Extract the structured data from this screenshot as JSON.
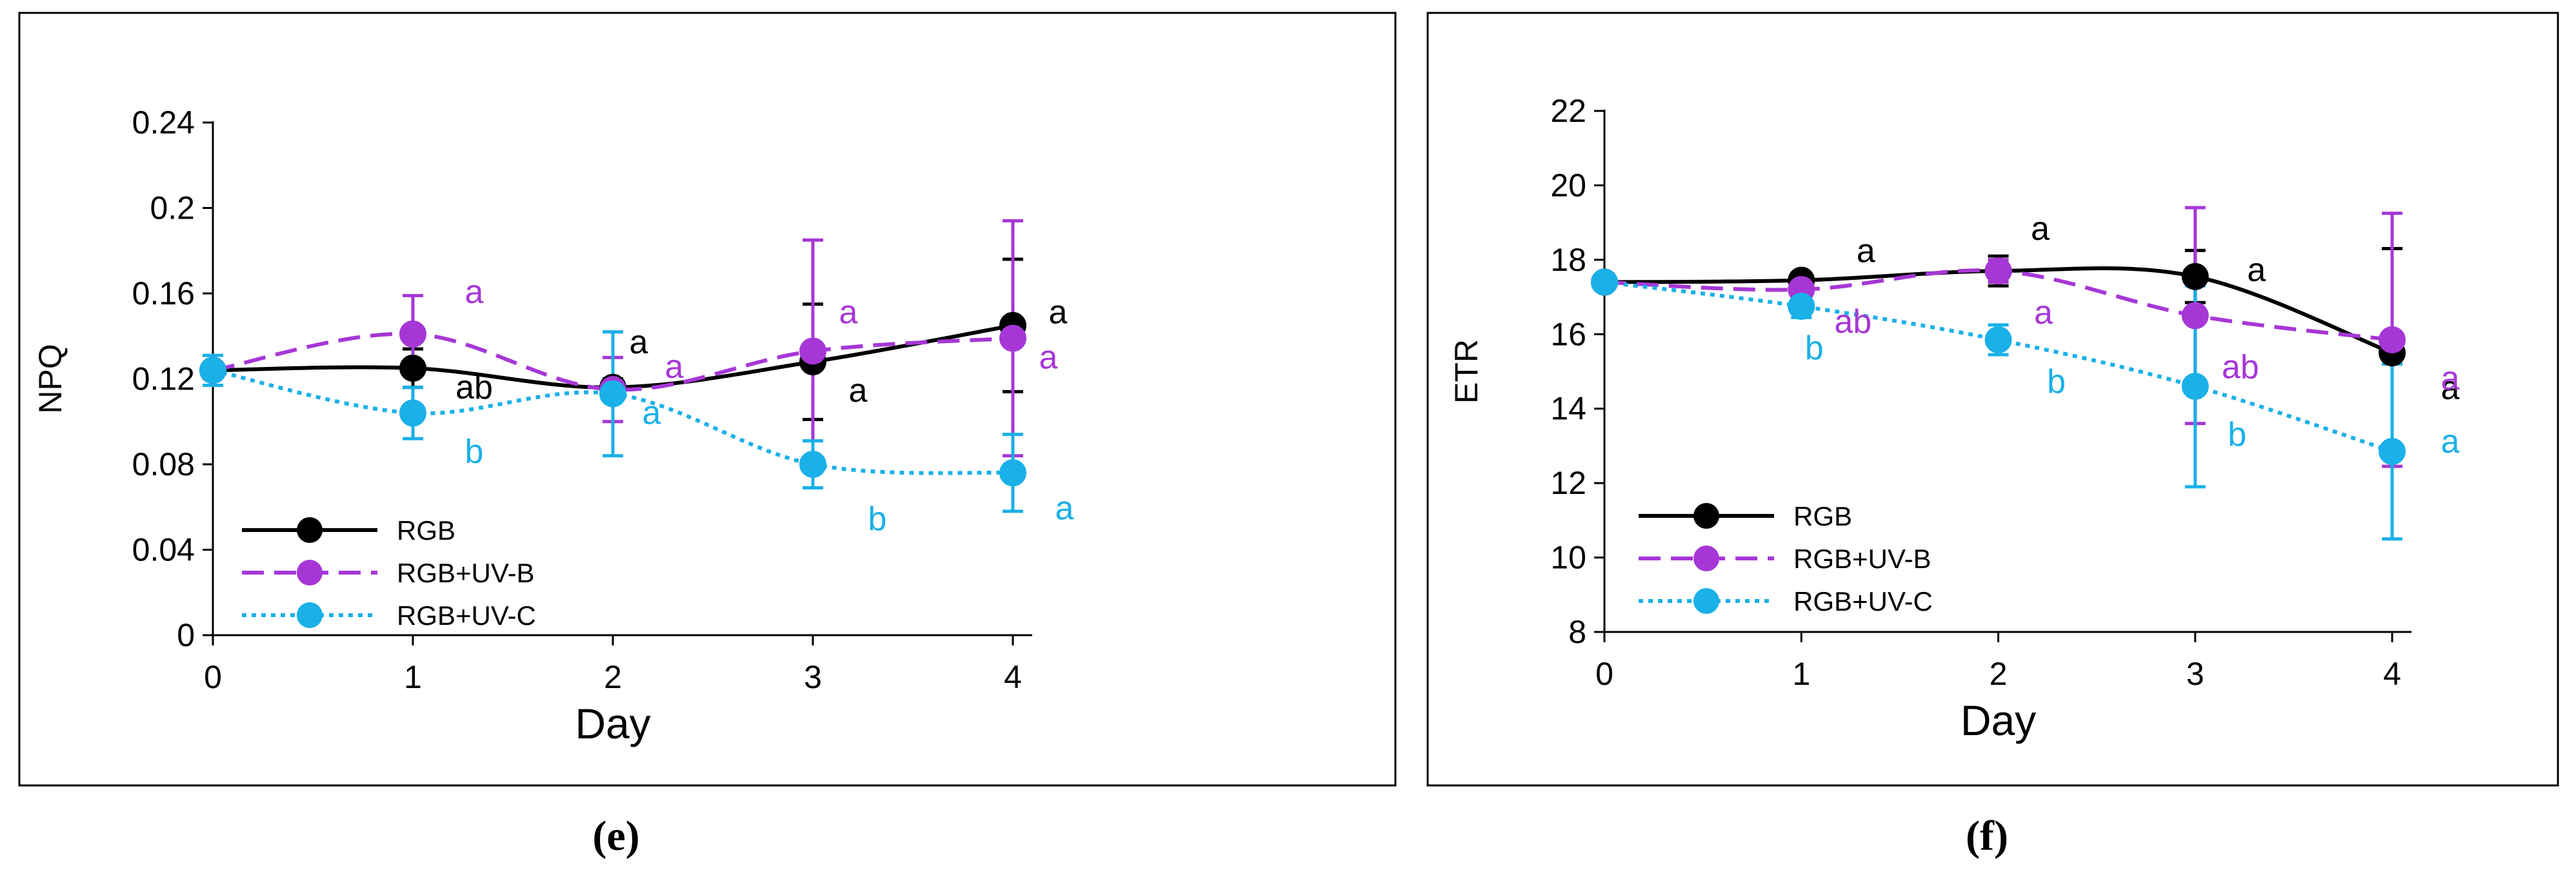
{
  "chart_data": [
    {
      "type": "line",
      "xlabel": "Day",
      "ylabel": "NPQ",
      "x": [
        0,
        1,
        2,
        3,
        4
      ],
      "xlim": [
        0,
        4
      ],
      "ylim": [
        0,
        0.24
      ],
      "yticks": [
        "0",
        "0.04",
        "0.08",
        "0.12",
        "0.16",
        "0.2",
        "0.24"
      ],
      "xticks": [
        "0",
        "1",
        "2",
        "3",
        "4"
      ],
      "panel_label": "(e)",
      "legend_position": "bottom-left",
      "series": [
        {
          "name": "RGB",
          "color": "#000000",
          "dash": "solid",
          "values": [
            0.124,
            0.125,
            0.116,
            0.128,
            0.145
          ],
          "errors": [
            0.0,
            0.009,
            0.004,
            0.027,
            0.031
          ],
          "letters": [
            "",
            "ab",
            "a",
            "a",
            "a"
          ]
        },
        {
          "name": "RGB+UV-B",
          "color": "#a637d6",
          "dash": "dashed",
          "values": [
            0.124,
            0.141,
            0.115,
            0.133,
            0.139
          ],
          "errors": [
            0.0,
            0.018,
            0.015,
            0.052,
            0.055
          ],
          "letters": [
            "",
            "a",
            "a",
            "a",
            "a"
          ]
        },
        {
          "name": "RGB+UV-C",
          "color": "#1ab0e8",
          "dash": "dotted",
          "values": [
            0.124,
            0.104,
            0.113,
            0.08,
            0.076
          ],
          "errors": [
            0.007,
            0.012,
            0.029,
            0.011,
            0.018
          ],
          "letters": [
            "",
            "b",
            "a",
            "b",
            "a"
          ]
        }
      ]
    },
    {
      "type": "line",
      "xlabel": "Day",
      "ylabel": "ETR",
      "x": [
        0,
        1,
        2,
        3,
        4
      ],
      "xlim": [
        0,
        4
      ],
      "ylim": [
        8,
        22
      ],
      "yticks": [
        "8",
        "10",
        "12",
        "14",
        "16",
        "18",
        "20",
        "22"
      ],
      "xticks": [
        "0",
        "1",
        "2",
        "3",
        "4"
      ],
      "panel_label": "(f)",
      "legend_position": "bottom-left",
      "series": [
        {
          "name": "RGB",
          "color": "#000000",
          "dash": "solid",
          "values": [
            17.4,
            17.45,
            17.7,
            17.55,
            15.5
          ],
          "errors": [
            0.0,
            0.2,
            0.4,
            0.7,
            2.8
          ],
          "letters": [
            "",
            "a",
            "a",
            "a",
            "a"
          ]
        },
        {
          "name": "RGB+UV-B",
          "color": "#a637d6",
          "dash": "dashed",
          "values": [
            17.4,
            17.2,
            17.7,
            16.5,
            15.85
          ],
          "errors": [
            0.0,
            0.3,
            0.3,
            2.9,
            3.4
          ],
          "letters": [
            "",
            "ab",
            "a",
            "ab",
            "a"
          ]
        },
        {
          "name": "RGB+UV-C",
          "color": "#1ab0e8",
          "dash": "dotted",
          "values": [
            17.4,
            16.75,
            15.85,
            14.6,
            12.85
          ],
          "errors": [
            0.0,
            0.3,
            0.4,
            2.7,
            2.35
          ],
          "letters": [
            "",
            "b",
            "b",
            "b",
            "a"
          ]
        }
      ]
    }
  ]
}
